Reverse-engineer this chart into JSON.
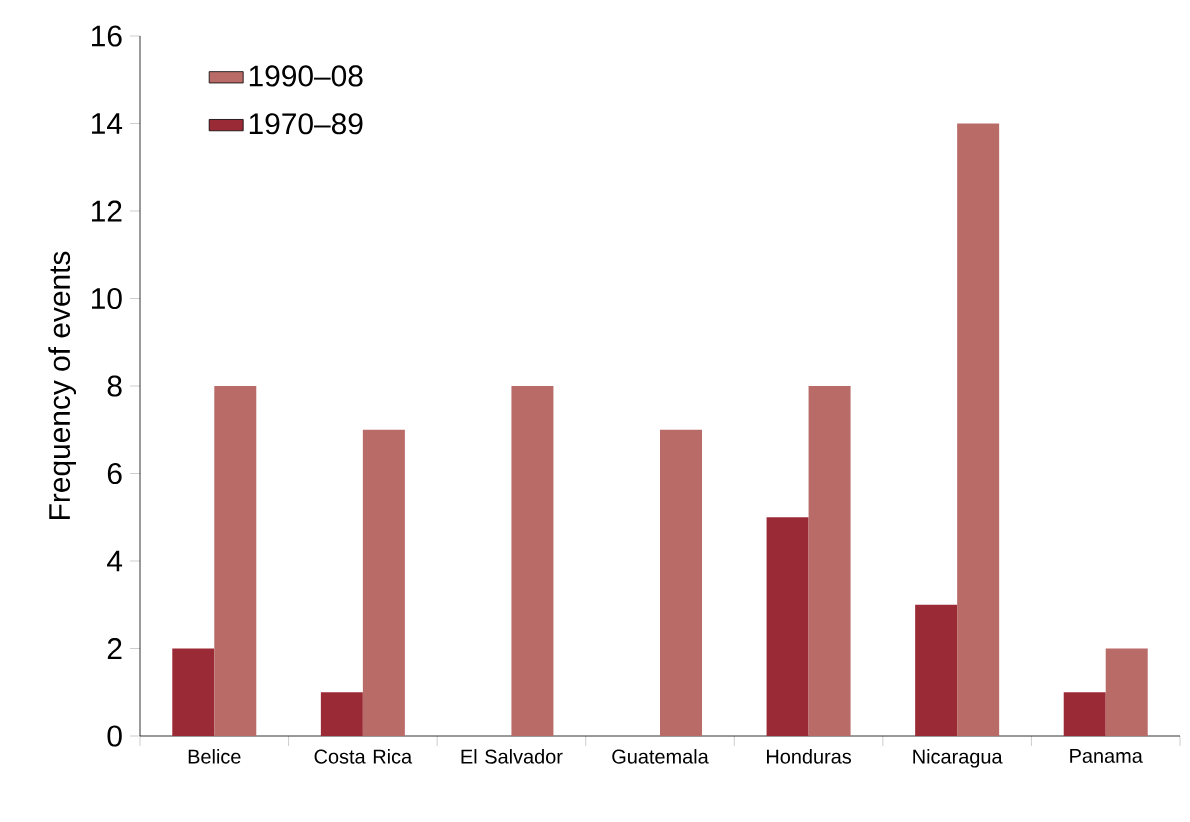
{
  "chart_data": {
    "type": "bar",
    "ylabel": "Frequency of events",
    "categories": [
      "Belice",
      "Costa Rica",
      "El Salvador",
      "Guatemala",
      "Honduras",
      "Nicaragua",
      "Panama"
    ],
    "series": [
      {
        "name": "1970–89",
        "color": "#9b2a37",
        "values": [
          2,
          1,
          0,
          0,
          5,
          3,
          1
        ]
      },
      {
        "name": "1990–08",
        "color": "#b96b68",
        "values": [
          8,
          7,
          8,
          7,
          8,
          14,
          2
        ]
      }
    ],
    "ylim": [
      0,
      16
    ],
    "yticks": [
      0,
      2,
      4,
      6,
      8,
      10,
      12,
      14,
      16
    ],
    "legend": "top left",
    "grid": false
  }
}
